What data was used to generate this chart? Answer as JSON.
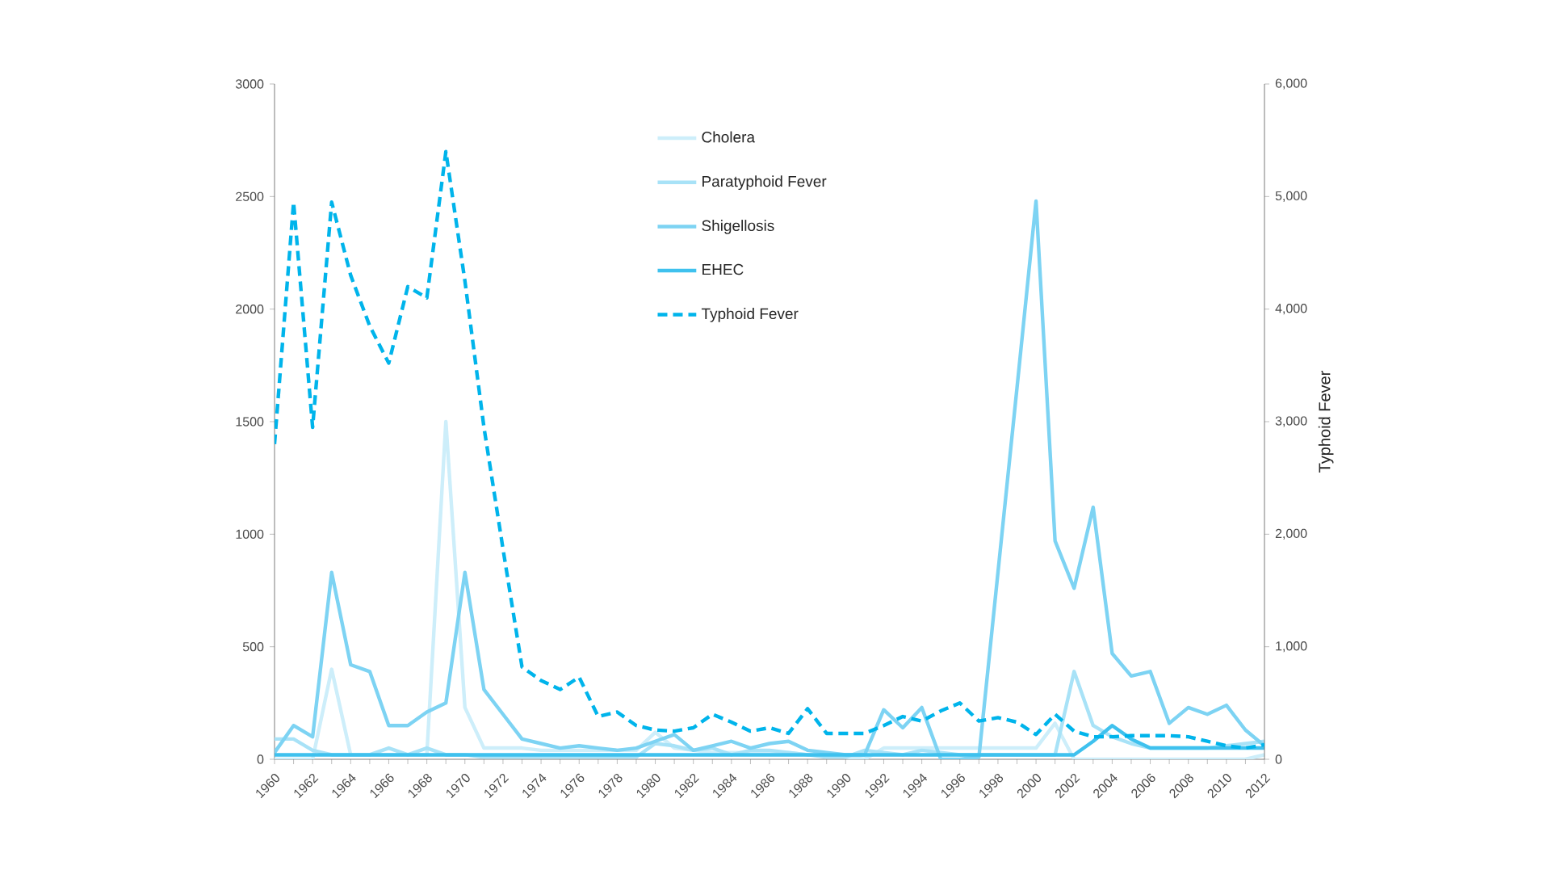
{
  "chart_data": {
    "type": "line",
    "marker": "none",
    "grid": false,
    "legend": "top",
    "x": [
      1960,
      1961,
      1962,
      1963,
      1964,
      1965,
      1966,
      1967,
      1968,
      1969,
      1970,
      1971,
      1972,
      1973,
      1974,
      1975,
      1976,
      1977,
      1978,
      1979,
      1980,
      1981,
      1982,
      1983,
      1984,
      1985,
      1986,
      1987,
      1988,
      1989,
      1990,
      1991,
      1992,
      1993,
      1994,
      1995,
      1996,
      1997,
      1998,
      1999,
      2000,
      2001,
      2002,
      2003,
      2004,
      2005,
      2006,
      2007,
      2008,
      2009,
      2010,
      2011,
      2012
    ],
    "xlim": [
      1960,
      2012
    ],
    "xticks": [
      1960,
      {
        "value": 1961,
        "label": null
      },
      1962,
      {
        "value": 1963,
        "label": null
      },
      1964,
      {
        "value": 1965,
        "label": null
      },
      1966,
      {
        "value": 1967,
        "label": null
      },
      1968,
      {
        "value": 1969,
        "label": null
      },
      1970,
      {
        "value": 1971,
        "label": null
      },
      1972,
      {
        "value": 1973,
        "label": null
      },
      1974,
      {
        "value": 1975,
        "label": null
      },
      1976,
      {
        "value": 1977,
        "label": null
      },
      1978,
      {
        "value": 1979,
        "label": null
      },
      1980,
      {
        "value": 1981,
        "label": null
      },
      1982,
      {
        "value": 1983,
        "label": null
      },
      1984,
      {
        "value": 1985,
        "label": null
      },
      1986,
      {
        "value": 1987,
        "label": null
      },
      1988,
      {
        "value": 1989,
        "label": null
      },
      1990,
      {
        "value": 1991,
        "label": null
      },
      1992,
      {
        "value": 1993,
        "label": null
      },
      1994,
      {
        "value": 1995,
        "label": null
      },
      1996,
      {
        "value": 1997,
        "label": null
      },
      1998,
      {
        "value": 1999,
        "label": null
      },
      2000,
      {
        "value": 2001,
        "label": null
      },
      2002,
      {
        "value": 2003,
        "label": null
      },
      2004,
      {
        "value": 2005,
        "label": null
      },
      2006,
      {
        "value": 2007,
        "label": null
      },
      2008,
      {
        "value": 2009,
        "label": null
      },
      2010,
      {
        "value": 2011,
        "label": null
      },
      2012
    ],
    "ylim": [
      0,
      3000
    ],
    "yticks": [
      0,
      500,
      1000,
      1500,
      2000,
      2500,
      3000
    ],
    "y2lim": [
      0,
      6000
    ],
    "y2ticks": [
      0,
      {
        "value": 1000,
        "label": "1,000"
      },
      {
        "value": 2000,
        "label": "2,000"
      },
      {
        "value": 3000,
        "label": "3,000"
      },
      {
        "value": 4000,
        "label": "4,000"
      },
      {
        "value": 5000,
        "label": "5,000"
      },
      {
        "value": 6000,
        "label": "6,000"
      }
    ],
    "y2label": "Typhoid Fever",
    "series": [
      {
        "name": "Cholera",
        "color": "#cdeefa",
        "line_style": "solid",
        "values": [
          0,
          0,
          0,
          400,
          20,
          20,
          20,
          20,
          20,
          1500,
          230,
          50,
          50,
          50,
          40,
          40,
          40,
          40,
          40,
          40,
          120,
          50,
          40,
          30,
          30,
          30,
          30,
          30,
          20,
          20,
          10,
          0,
          50,
          50,
          50,
          50,
          50,
          50,
          50,
          50,
          50,
          160,
          0,
          0,
          0,
          0,
          0,
          0,
          0,
          0,
          0,
          0,
          20
        ]
      },
      {
        "name": "Paratyphoid Fever",
        "color": "#a8e2f7",
        "line_style": "solid",
        "values": [
          90,
          90,
          40,
          20,
          20,
          20,
          50,
          20,
          50,
          20,
          20,
          10,
          10,
          10,
          10,
          10,
          10,
          10,
          10,
          10,
          70,
          60,
          40,
          50,
          20,
          40,
          40,
          30,
          20,
          10,
          10,
          40,
          30,
          20,
          40,
          30,
          20,
          20,
          20,
          20,
          20,
          20,
          390,
          150,
          100,
          70,
          50,
          50,
          50,
          50,
          60,
          70,
          80
        ]
      },
      {
        "name": "Shigellosis",
        "color": "#7dd3f3",
        "line_style": "solid",
        "values": [
          30,
          150,
          100,
          830,
          420,
          390,
          150,
          150,
          210,
          250,
          830,
          310,
          200,
          90,
          70,
          50,
          60,
          50,
          40,
          50,
          80,
          110,
          40,
          60,
          80,
          50,
          70,
          80,
          40,
          30,
          20,
          20,
          220,
          140,
          230,
          0,
          0,
          10,
          830,
          1650,
          2480,
          970,
          760,
          1120,
          470,
          370,
          390,
          160,
          230,
          200,
          240,
          130,
          60
        ]
      },
      {
        "name": "EHEC",
        "color": "#3fc1ee",
        "line_style": "solid",
        "values": [
          20,
          20,
          20,
          20,
          20,
          20,
          20,
          20,
          20,
          20,
          20,
          20,
          20,
          20,
          20,
          20,
          20,
          20,
          20,
          20,
          20,
          20,
          20,
          20,
          20,
          20,
          20,
          20,
          20,
          20,
          20,
          20,
          20,
          20,
          20,
          20,
          20,
          20,
          20,
          20,
          20,
          20,
          20,
          80,
          150,
          90,
          50,
          50,
          50,
          50,
          50,
          50,
          50
        ]
      },
      {
        "name": "Typhoid Fever",
        "color": "#00b4eb",
        "line_style": "dashed",
        "axis": "y2",
        "values": [
          2800,
          4950,
          2950,
          4950,
          4300,
          3850,
          3520,
          4200,
          4100,
          5400,
          4250,
          2950,
          1870,
          820,
          700,
          620,
          730,
          380,
          420,
          300,
          260,
          250,
          280,
          400,
          330,
          250,
          280,
          230,
          450,
          230,
          230,
          230,
          300,
          380,
          340,
          430,
          500,
          340,
          370,
          330,
          220,
          400,
          250,
          200,
          200,
          210,
          210,
          210,
          200,
          160,
          120,
          100,
          130
        ]
      }
    ]
  }
}
